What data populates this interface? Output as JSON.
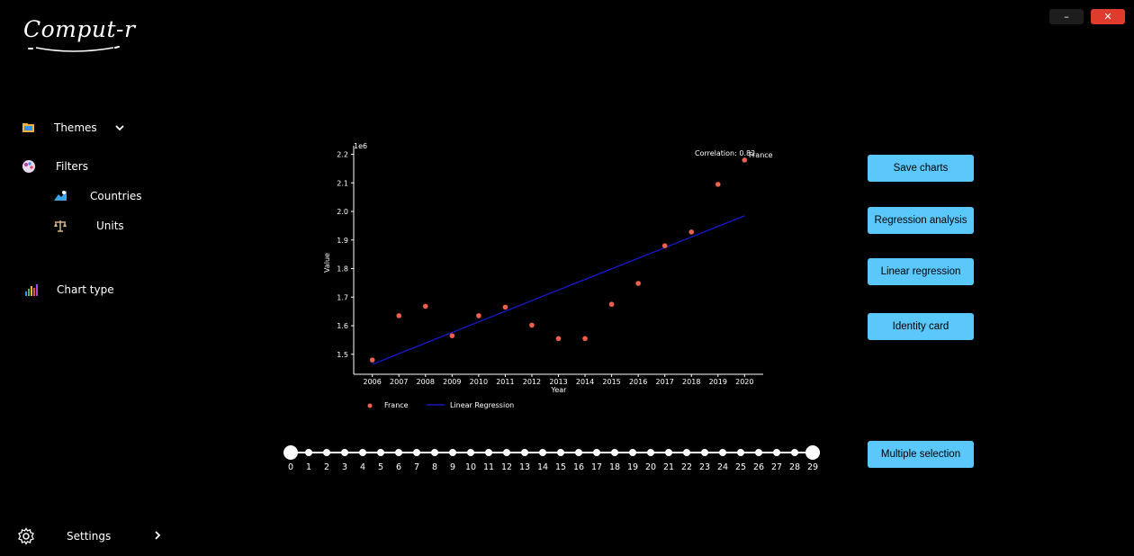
{
  "window": {
    "minimize_label": "–",
    "close_label": "✕",
    "close_color": "#e03c2e"
  },
  "logo": {
    "text": "Comput-r"
  },
  "sidebar": {
    "themes": {
      "label": "Themes",
      "icon": "folder-icon"
    },
    "filters": {
      "label": "Filters",
      "icon": "palette-icon"
    },
    "countries": {
      "label": "Countries",
      "icon": "map-icon"
    },
    "units": {
      "label": "Units",
      "icon": "scale-icon"
    },
    "chart_type": {
      "label": "Chart type",
      "icon": "bar-chart-icon"
    },
    "settings": {
      "label": "Settings",
      "icon": "gear-icon"
    }
  },
  "buttons": {
    "save_charts": "Save charts",
    "regression_analysis": "Regression analysis",
    "linear_regression": "Linear regression",
    "identity_card": "Identity card",
    "multiple_selection": "Multiple selection",
    "accent_color": "#5bc8fb"
  },
  "slider": {
    "labels": [
      "0",
      "1",
      "2",
      "3",
      "4",
      "5",
      "6",
      "7",
      "8",
      "9",
      "10",
      "11",
      "12",
      "13",
      "14",
      "15",
      "16",
      "17",
      "18",
      "19",
      "20",
      "21",
      "22",
      "23",
      "24",
      "25",
      "26",
      "27",
      "28",
      "29"
    ],
    "range_start": 0,
    "range_end": 29
  },
  "chart_data": {
    "type": "scatter",
    "x": [
      2006,
      2007,
      2008,
      2009,
      2010,
      2011,
      2012,
      2013,
      2014,
      2015,
      2016,
      2017,
      2018,
      2019,
      2020
    ],
    "xticks": [
      "2006",
      "2007",
      "2008",
      "2009",
      "2010",
      "2011",
      "2012",
      "2013",
      "2014",
      "2015",
      "2016",
      "2017",
      "2018",
      "2019",
      "2020"
    ],
    "series": [
      {
        "name": "France",
        "values": [
          1.48,
          1.635,
          1.668,
          1.565,
          1.635,
          1.665,
          1.602,
          1.555,
          1.555,
          1.675,
          1.748,
          1.88,
          1.928,
          2.095,
          2.18
        ],
        "color": "#f0604c"
      }
    ],
    "regression": {
      "name": "Linear Regression",
      "start": [
        2006,
        1.465
      ],
      "end": [
        2020,
        1.985
      ],
      "color": "#1a1ae0"
    },
    "yticks": [
      "1.5",
      "1.6",
      "1.7",
      "1.8",
      "1.9",
      "2.0",
      "2.1",
      "2.2"
    ],
    "ylim": [
      1.43,
      2.23
    ],
    "xlim": [
      2005.3,
      2020.7
    ],
    "scale_label": "1e6",
    "xlabel": "Year",
    "ylabel": "Value",
    "annotation": "Correlation: 0.82",
    "point_label": "France",
    "legend": [
      "France",
      "Linear Regression"
    ],
    "legend_position": "bottom"
  }
}
